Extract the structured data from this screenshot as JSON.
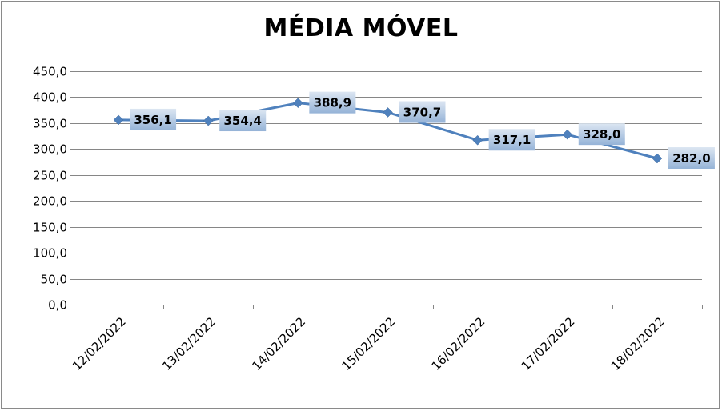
{
  "chart_data": {
    "type": "line",
    "title": "MÉDIA MÓVEL",
    "xlabel": "",
    "ylabel": "",
    "categories": [
      "12/02/2022",
      "13/02/2022",
      "14/02/2022",
      "15/02/2022",
      "16/02/2022",
      "17/02/2022",
      "18/02/2022"
    ],
    "series": [
      {
        "values": [
          356.1,
          354.4,
          388.9,
          370.7,
          317.1,
          328.0,
          282.0
        ],
        "labels": [
          "356,1",
          "354,4",
          "388,9",
          "370,7",
          "317,1",
          "328,0",
          "282,0"
        ],
        "color": "#4F81BD",
        "marker": "diamond"
      }
    ],
    "ylim": [
      0,
      450
    ],
    "yticks": [
      0,
      50,
      100,
      150,
      200,
      250,
      300,
      350,
      400,
      450
    ],
    "ytick_labels": [
      "0,0",
      "50,0",
      "100,0",
      "150,0",
      "200,0",
      "250,0",
      "300,0",
      "350,0",
      "400,0",
      "450,0"
    ],
    "grid": "horizontal",
    "legend": "none",
    "data_label_style": {
      "box_top_color": "#DCE6F2",
      "box_bottom_color": "#95B3D7"
    }
  }
}
